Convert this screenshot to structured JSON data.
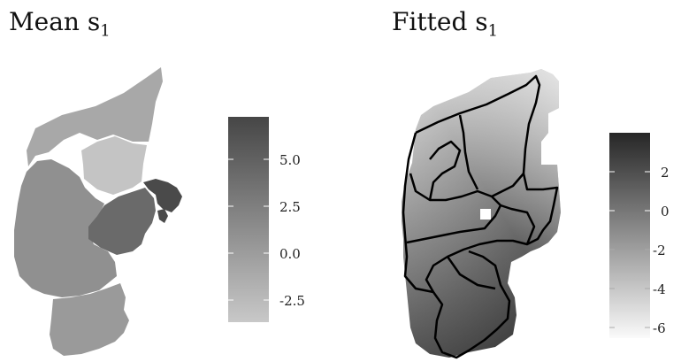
{
  "panels": [
    {
      "title_main": "Mean s",
      "title_sub": "1",
      "legend": {
        "ticks": [
          "5.0",
          "2.5",
          "0.0",
          "-2.5"
        ],
        "gradient_top_color": "#464646",
        "gradient_bottom_color": "#c8c8c8"
      },
      "regions": [
        {
          "name": "north",
          "fill": "#a8a8a8"
        },
        {
          "name": "west",
          "fill": "#909090"
        },
        {
          "name": "east-center",
          "fill": "#c4c4c4"
        },
        {
          "name": "east",
          "fill": "#6a6a6a"
        },
        {
          "name": "east-peninsula",
          "fill": "#4a4a4a"
        },
        {
          "name": "south",
          "fill": "#9a9a9a"
        }
      ]
    },
    {
      "title_main": "Fitted s",
      "title_sub": "1",
      "legend": {
        "ticks": [
          "2",
          "0",
          "-2",
          "-4",
          "-6"
        ],
        "gradient_top_color": "#262626",
        "gradient_bottom_color": "#fafafa"
      }
    }
  ]
}
